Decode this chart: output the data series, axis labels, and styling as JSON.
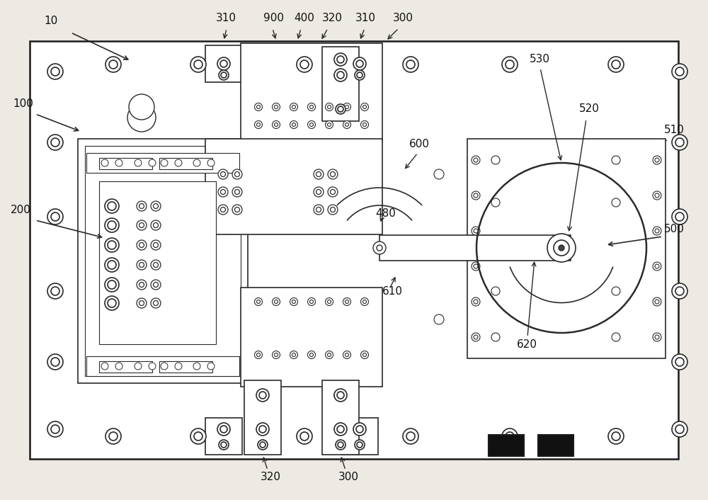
{
  "bg_color": "#ede9e3",
  "line_color": "#2a2a2a",
  "border_color": "#1a1a1a",
  "fig_width": 10.0,
  "fig_height": 7.06
}
